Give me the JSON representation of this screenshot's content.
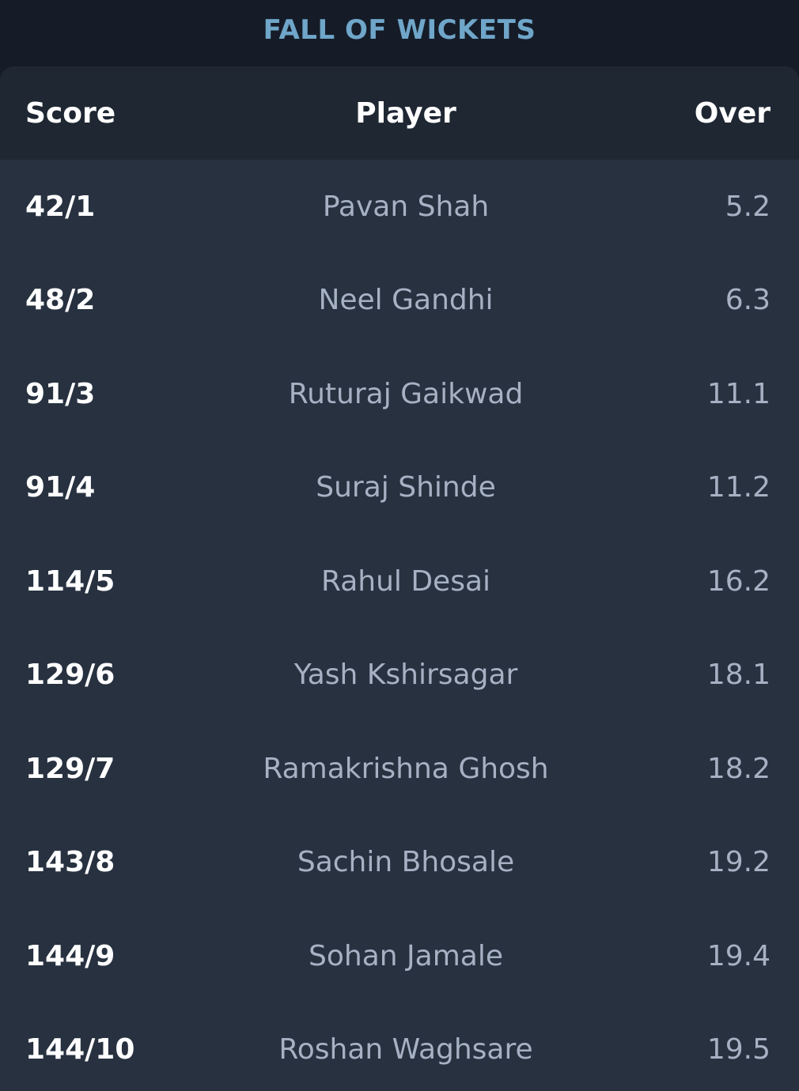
{
  "section_title": "FALL OF WICKETS",
  "table": {
    "headers": {
      "score": "Score",
      "player": "Player",
      "over": "Over"
    },
    "rows": [
      {
        "score": "42/1",
        "player": "Pavan Shah",
        "over": "5.2"
      },
      {
        "score": "48/2",
        "player": "Neel Gandhi",
        "over": "6.3"
      },
      {
        "score": "91/3",
        "player": "Ruturaj Gaikwad",
        "over": "11.1"
      },
      {
        "score": "91/4",
        "player": "Suraj Shinde",
        "over": "11.2"
      },
      {
        "score": "114/5",
        "player": "Rahul Desai",
        "over": "16.2"
      },
      {
        "score": "129/6",
        "player": "Yash Kshirsagar",
        "over": "18.1"
      },
      {
        "score": "129/7",
        "player": "Ramakrishna Ghosh",
        "over": "18.2"
      },
      {
        "score": "143/8",
        "player": "Sachin Bhosale",
        "over": "19.2"
      },
      {
        "score": "144/9",
        "player": "Sohan Jamale",
        "over": "19.4"
      },
      {
        "score": "144/10",
        "player": "Roshan Waghsare",
        "over": "19.5"
      }
    ]
  },
  "colors": {
    "page_background": "#151c28",
    "card_background": "#273140",
    "header_background": "#1f2733",
    "title_accent": "#6fa6c9",
    "primary_text": "#ffffff",
    "secondary_text": "#a6b1c3"
  }
}
